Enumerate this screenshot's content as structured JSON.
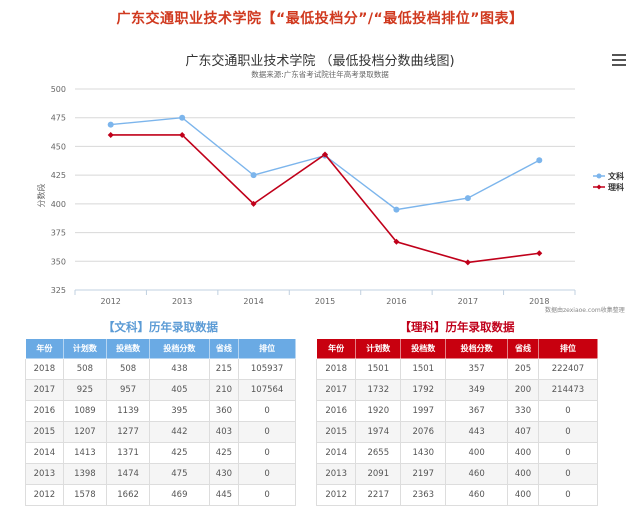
{
  "page": {
    "title": "广东交通职业技术学院【“最低投档分”/“最低投档排位”图表】"
  },
  "chart_data": {
    "type": "line",
    "title": "广东交通职业技术学院 （最低投档分数曲线图)",
    "subtitle": "数据来源:广东省考试院往年高考录取数据",
    "xlabel": "",
    "ylabel": "分数段",
    "categories": [
      "2012",
      "2013",
      "2014",
      "2015",
      "2016",
      "2017",
      "2018"
    ],
    "ylim": [
      325,
      500
    ],
    "yticks": [
      325,
      350,
      375,
      400,
      425,
      450,
      475,
      500
    ],
    "grid": true,
    "legend_position": "right",
    "series": [
      {
        "name": "文科",
        "color": "#7cb5ec",
        "marker": "circle",
        "values": [
          469,
          475,
          425,
          442,
          395,
          405,
          438
        ]
      },
      {
        "name": "理科",
        "color": "#c0001a",
        "marker": "diamond",
        "values": [
          460,
          460,
          400,
          443,
          367,
          349,
          357
        ]
      }
    ],
    "credits": "数据由zexiaoe.com收集整理"
  },
  "chart": {
    "menu_icon": "hamburger-menu-icon"
  },
  "tables": {
    "wen": {
      "title": "【文科】历年录取数据",
      "headers": [
        "年份",
        "计划数",
        "投档数",
        "投档分数",
        "省线",
        "排位"
      ],
      "rows": [
        [
          "2018",
          "508",
          "508",
          "438",
          "215",
          "105937"
        ],
        [
          "2017",
          "925",
          "957",
          "405",
          "210",
          "107564"
        ],
        [
          "2016",
          "1089",
          "1139",
          "395",
          "360",
          "0"
        ],
        [
          "2015",
          "1207",
          "1277",
          "442",
          "403",
          "0"
        ],
        [
          "2014",
          "1413",
          "1371",
          "425",
          "425",
          "0"
        ],
        [
          "2013",
          "1398",
          "1474",
          "475",
          "430",
          "0"
        ],
        [
          "2012",
          "1578",
          "1662",
          "469",
          "445",
          "0"
        ]
      ]
    },
    "li": {
      "title": "【理科】历年录取数据",
      "headers": [
        "年份",
        "计划数",
        "投档数",
        "投档分数",
        "省线",
        "排位"
      ],
      "rows": [
        [
          "2018",
          "1501",
          "1501",
          "357",
          "205",
          "222407"
        ],
        [
          "2017",
          "1732",
          "1792",
          "349",
          "200",
          "214473"
        ],
        [
          "2016",
          "1920",
          "1997",
          "367",
          "330",
          "0"
        ],
        [
          "2015",
          "1974",
          "2076",
          "443",
          "407",
          "0"
        ],
        [
          "2014",
          "2655",
          "1430",
          "400",
          "400",
          "0"
        ],
        [
          "2013",
          "2091",
          "2197",
          "460",
          "400",
          "0"
        ],
        [
          "2012",
          "2217",
          "2363",
          "460",
          "400",
          "0"
        ]
      ]
    }
  }
}
